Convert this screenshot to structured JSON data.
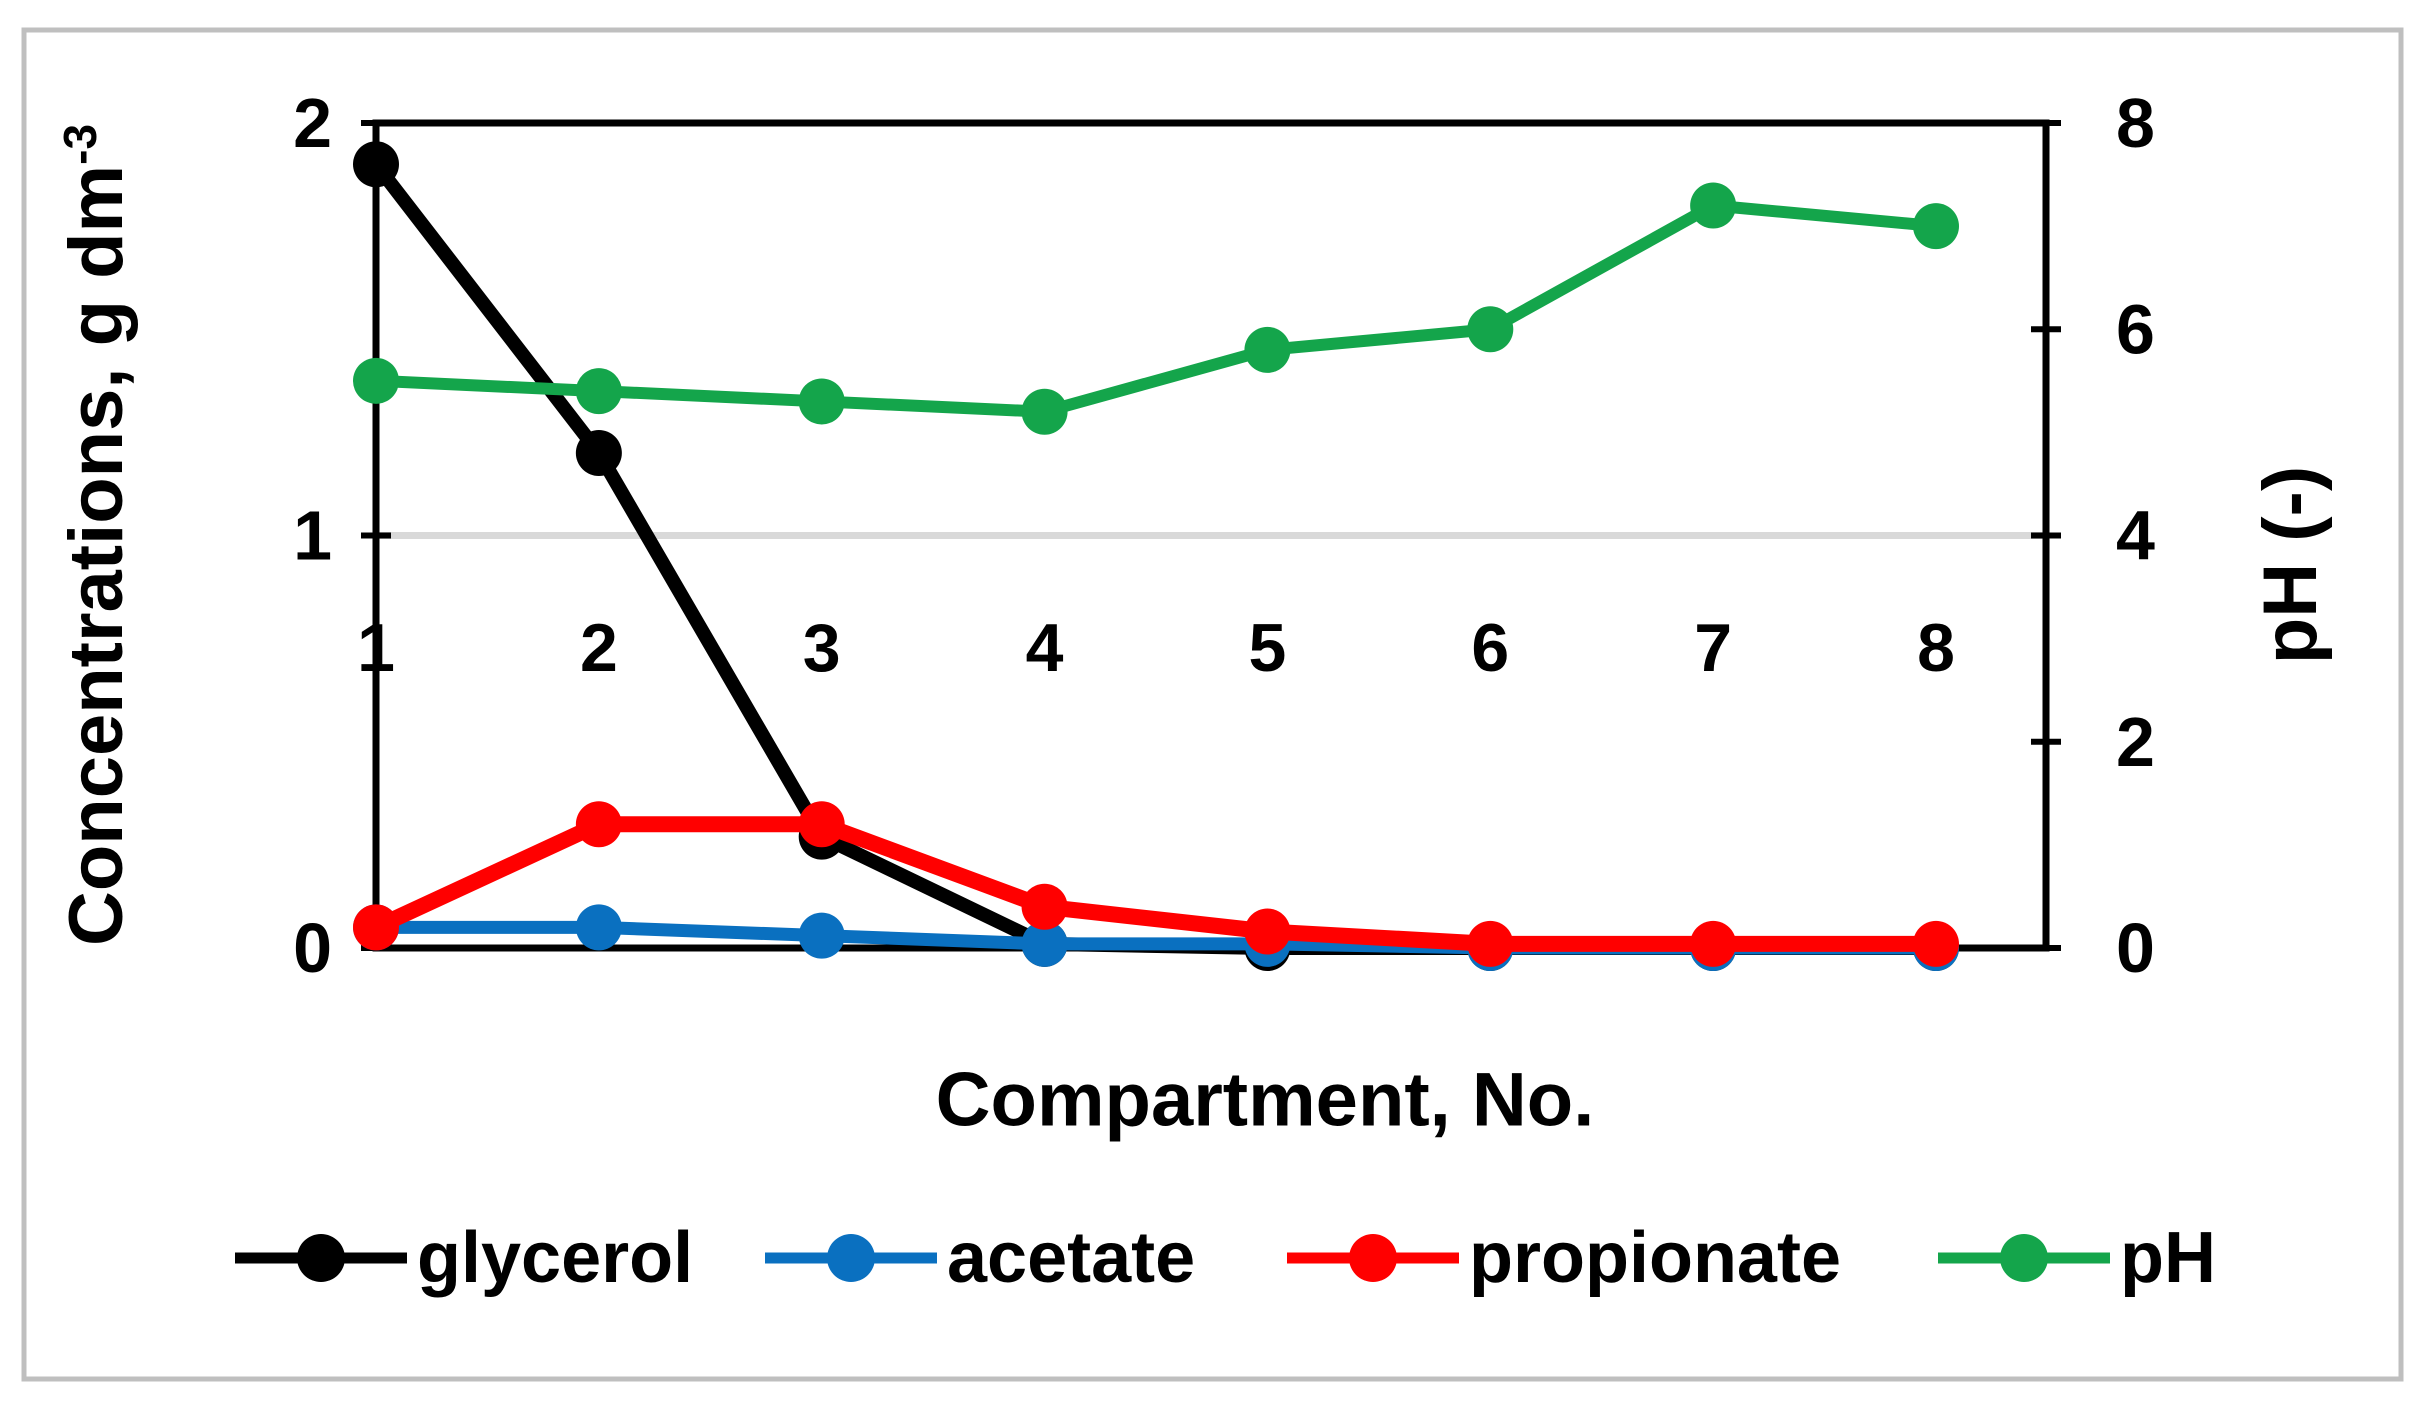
{
  "chart_data": {
    "type": "line",
    "title": "",
    "x_title": "Compartment, No.",
    "y_left_title": {
      "text": "Concentrations, g dm",
      "superscript": "-3"
    },
    "y_right_title": "pH (-)",
    "categories": [
      1,
      2,
      3,
      4,
      5,
      6,
      7,
      8
    ],
    "x_tick_labels": [
      "1",
      "2",
      "3",
      "4",
      "5",
      "6",
      "7",
      "8"
    ],
    "y_left_axis": {
      "range": [
        0,
        2
      ],
      "tick_values": [
        0,
        1,
        2
      ],
      "tick_labels": [
        "0",
        "1",
        "2"
      ]
    },
    "y_right_axis": {
      "range": [
        0,
        8
      ],
      "tick_values": [
        0,
        2,
        4,
        6,
        8
      ],
      "tick_labels": [
        "0",
        "2",
        "4",
        "6",
        "8"
      ]
    },
    "gridlines_left_values": [
      1
    ],
    "grid_on": true,
    "grid_color": "#D9D9D9",
    "axis_color": "#000000",
    "frame_color": "#BFBFBF",
    "legend_position": "bottom",
    "series": [
      {
        "name": "glycerol",
        "axis": "left",
        "color": "#000000",
        "values": [
          1.9,
          1.2,
          0.27,
          0.01,
          0,
          0,
          0,
          0
        ]
      },
      {
        "name": "acetate",
        "axis": "left",
        "color": "#0A70C0",
        "values": [
          0.05,
          0.05,
          0.03,
          0.01,
          0.01,
          0,
          0,
          0
        ]
      },
      {
        "name": "propionate",
        "axis": "left",
        "color": "#FF0000",
        "values": [
          0.05,
          0.3,
          0.3,
          0.1,
          0.04,
          0.01,
          0.01,
          0.01
        ]
      },
      {
        "name": "pH",
        "axis": "right",
        "color": "#14A54B",
        "values": [
          5.5,
          5.4,
          5.3,
          5.2,
          5.8,
          6.0,
          7.2,
          7.0
        ]
      }
    ],
    "legend": {
      "items": [
        "glycerol",
        "acetate",
        "propionate",
        "pH"
      ]
    }
  }
}
